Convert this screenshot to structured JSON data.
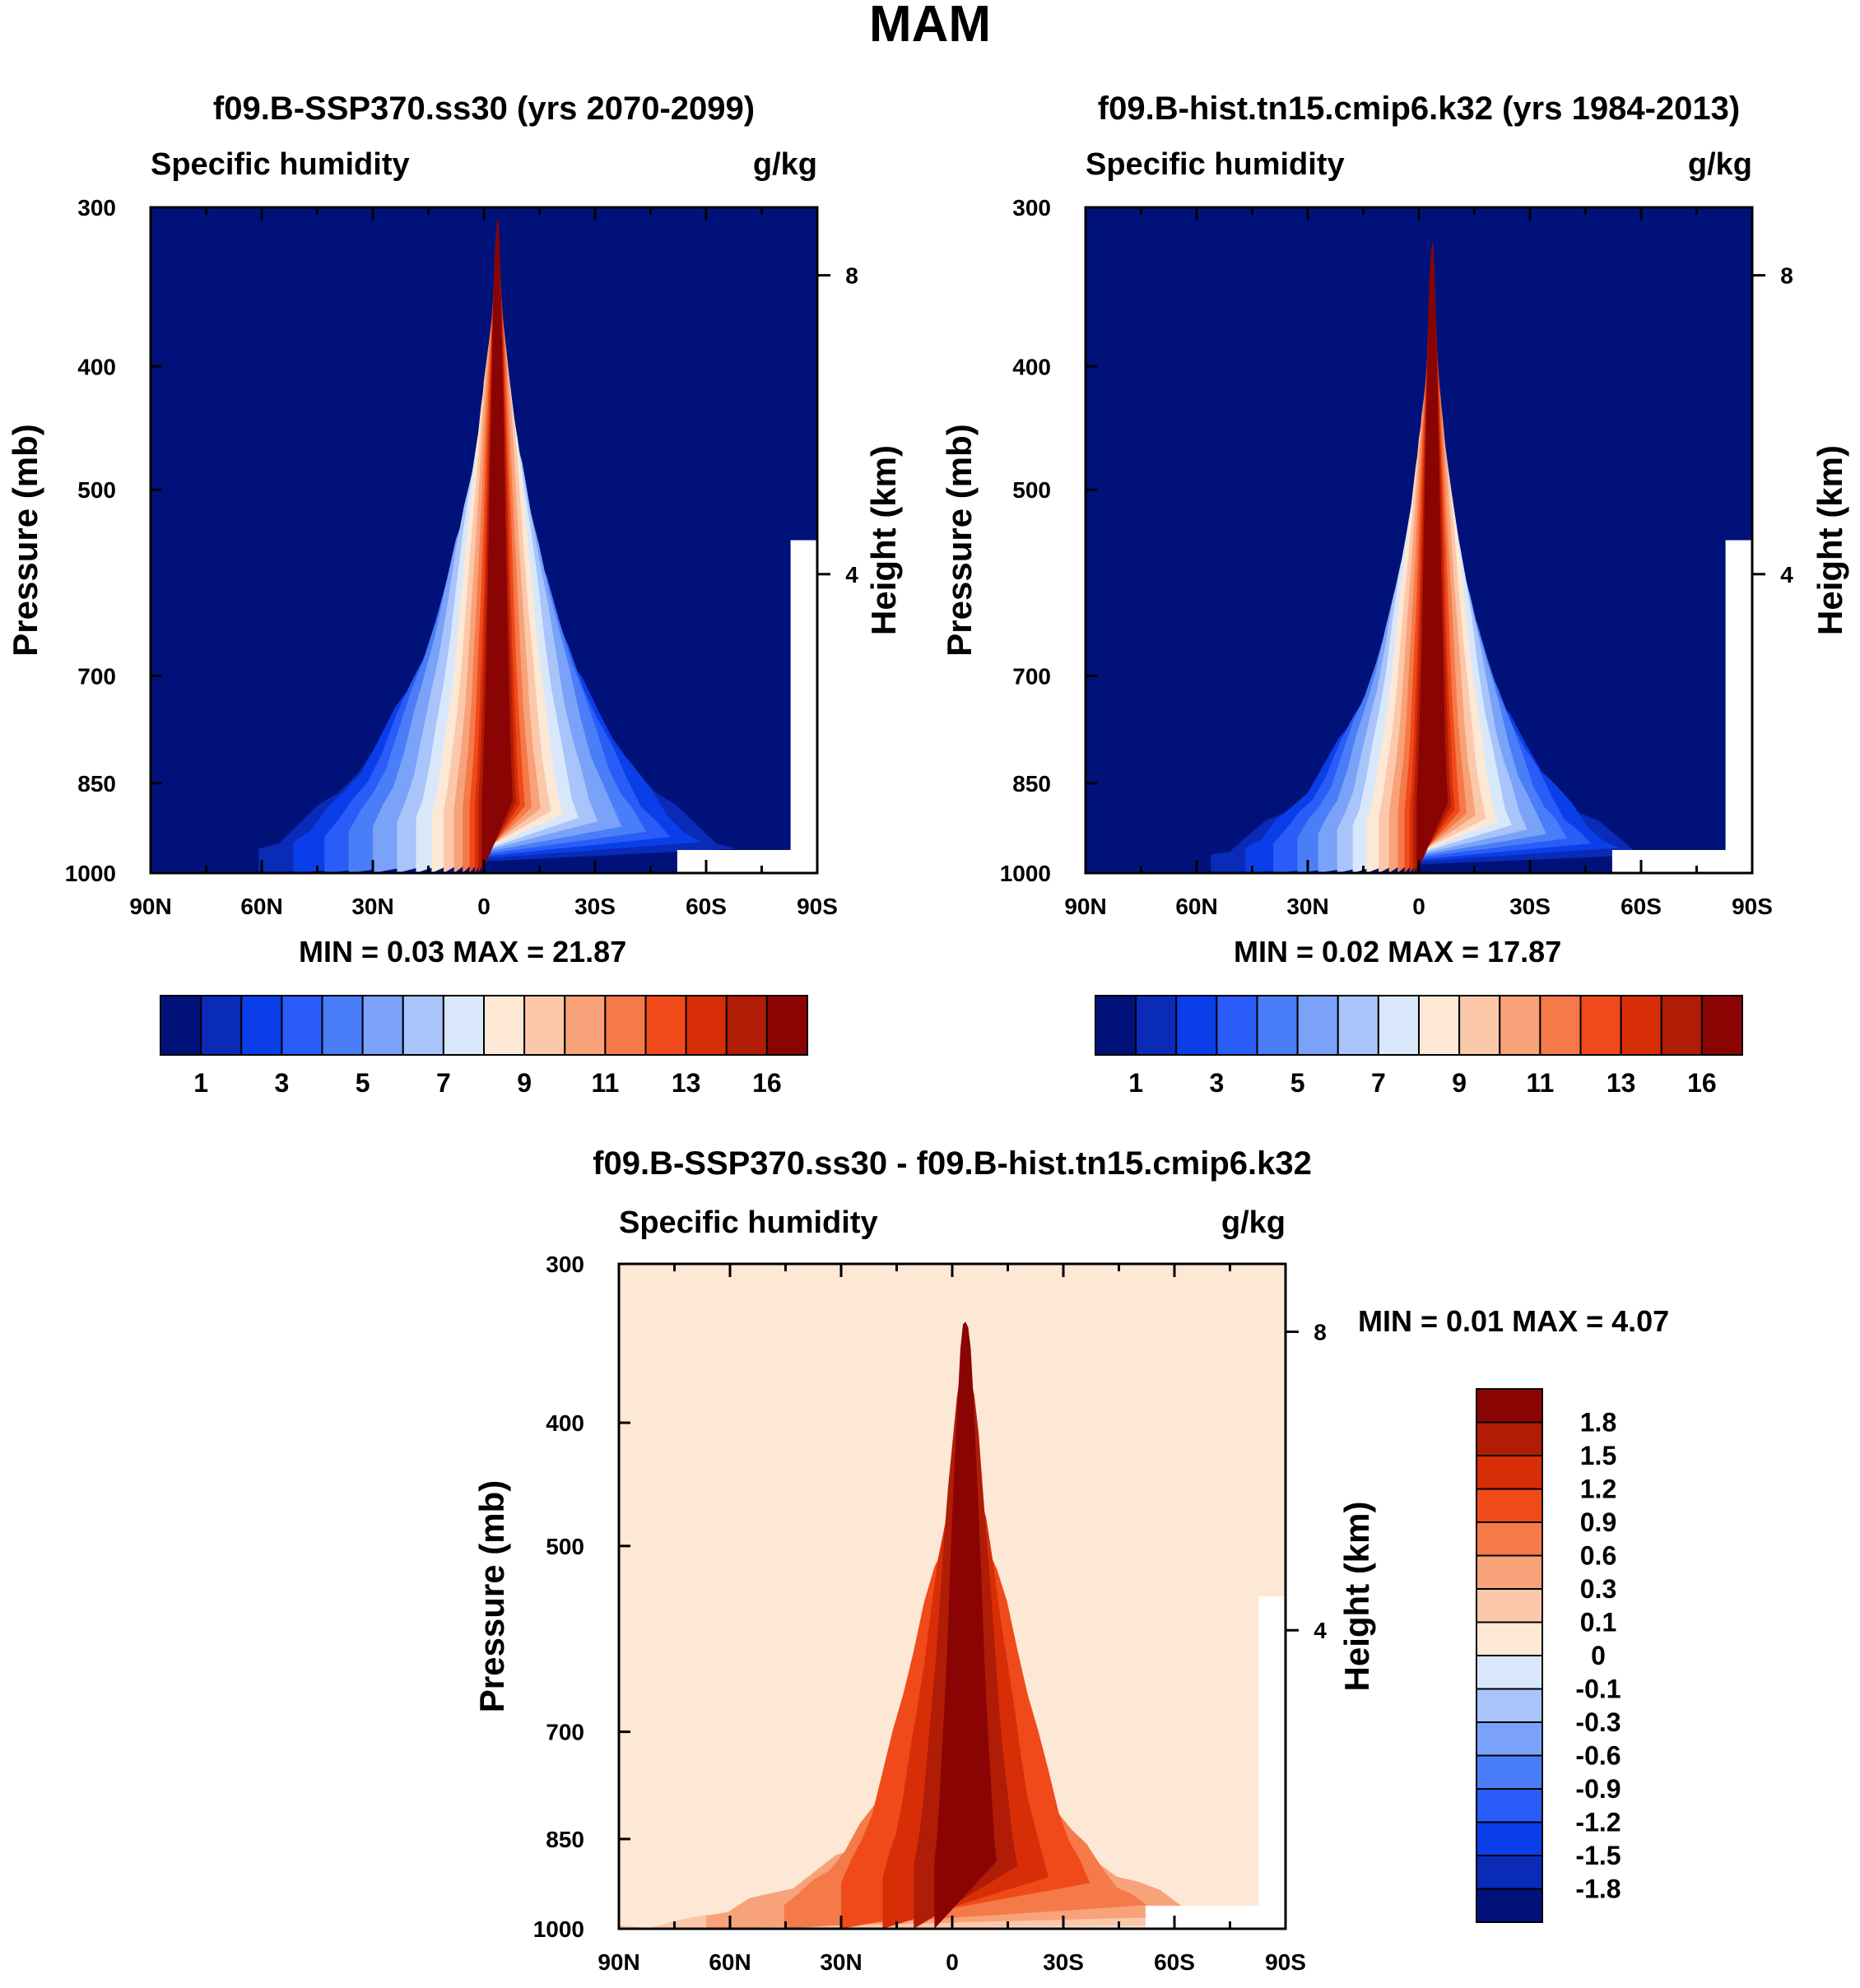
{
  "page_title": "MAM",
  "chart_data": [
    {
      "type": "heatmap",
      "variable": "Specific humidity",
      "title": "f09.B-SSP370.ss30 (yrs 2070-2099)",
      "left_label": "Specific humidity",
      "units": "g/kg",
      "ylabel": "Pressure (mb)",
      "ylabel_right": "Height (km)",
      "x_ticks": [
        "90N",
        "60N",
        "30N",
        "0",
        "30S",
        "60S",
        "90S"
      ],
      "y_ticks": [
        "300",
        "400",
        "500",
        "700",
        "850",
        "1000"
      ],
      "y_ticks_right": [
        "8",
        "4"
      ],
      "pressure_range": [
        1000,
        300
      ],
      "lat_range": [
        90,
        -90
      ],
      "min_label": "MIN =",
      "min_value": "0.03",
      "max_label": "MAX =",
      "max_value": "21.87",
      "colorbar_labels": [
        "1",
        "3",
        "5",
        "7",
        "9",
        "11",
        "13",
        "16"
      ],
      "colors": [
        "#00127a",
        "#0a2ab8",
        "#0a3ee8",
        "#2a5cf8",
        "#4a7ef8",
        "#7aa2f8",
        "#a8c4fa",
        "#d8e8fa",
        "#fde8d6",
        "#fcc8aa",
        "#f8a27a",
        "#f57a4a",
        "#f04a1a",
        "#d82e08",
        "#b01c06",
        "#8a0404"
      ],
      "contour_peaks": [
        0.33,
        0.42,
        0.49,
        0.56,
        0.63,
        0.7,
        0.75,
        0.8,
        0.84,
        0.87,
        0.89,
        0.91,
        0.93,
        0.955,
        0.985
      ],
      "contour_widths": [
        138,
        118,
        100,
        86,
        72,
        58,
        47,
        38,
        31,
        25,
        20,
        16,
        13,
        11,
        9
      ]
    },
    {
      "type": "heatmap",
      "variable": "Specific humidity",
      "title": "f09.B-hist.tn15.cmip6.k32 (yrs 1984-2013)",
      "left_label": "Specific humidity",
      "units": "g/kg",
      "ylabel": "Pressure (mb)",
      "ylabel_right": "Height (km)",
      "x_ticks": [
        "90N",
        "60N",
        "30N",
        "0",
        "30S",
        "60S",
        "90S"
      ],
      "y_ticks": [
        "300",
        "400",
        "500",
        "700",
        "850",
        "1000"
      ],
      "y_ticks_right": [
        "8",
        "4"
      ],
      "pressure_range": [
        1000,
        300
      ],
      "lat_range": [
        90,
        -90
      ],
      "min_label": "MIN =",
      "min_value": "0.02",
      "max_label": "MAX =",
      "max_value": "17.87",
      "colorbar_labels": [
        "1",
        "3",
        "5",
        "7",
        "9",
        "11",
        "13",
        "16"
      ],
      "colors": [
        "#00127a",
        "#0a2ab8",
        "#0a3ee8",
        "#2a5cf8",
        "#4a7ef8",
        "#7aa2f8",
        "#a8c4fa",
        "#d8e8fa",
        "#fde8d6",
        "#fcc8aa",
        "#f8a27a",
        "#f57a4a",
        "#f04a1a",
        "#d82e08",
        "#b01c06",
        "#8a0404"
      ],
      "contour_peaks": [
        0.25,
        0.34,
        0.4,
        0.47,
        0.53,
        0.59,
        0.65,
        0.7,
        0.74,
        0.78,
        0.81,
        0.84,
        0.87,
        0.91,
        0.95
      ],
      "contour_widths": [
        128,
        108,
        92,
        78,
        66,
        55,
        46,
        38,
        31,
        25,
        20,
        16,
        13,
        11,
        9
      ]
    },
    {
      "type": "heatmap",
      "variable": "Specific humidity",
      "title": "f09.B-SSP370.ss30 - f09.B-hist.tn15.cmip6.k32",
      "left_label": "Specific humidity",
      "units": "g/kg",
      "ylabel": "Pressure (mb)",
      "ylabel_right": "Height (km)",
      "x_ticks": [
        "90N",
        "60N",
        "30N",
        "0",
        "30S",
        "60S",
        "90S"
      ],
      "y_ticks": [
        "300",
        "400",
        "500",
        "700",
        "850",
        "1000"
      ],
      "y_ticks_right": [
        "8",
        "4"
      ],
      "pressure_range": [
        1000,
        300
      ],
      "lat_range": [
        90,
        -90
      ],
      "min_label": "MIN =",
      "min_value": "0.01",
      "max_label": "MAX =",
      "max_value": "4.07",
      "colorbar_labels": [
        "1.8",
        "1.5",
        "1.2",
        "0.9",
        "0.6",
        "0.3",
        "0.1",
        "0",
        "-0.1",
        "-0.3",
        "-0.6",
        "-0.9",
        "-1.2",
        "-1.5",
        "-1.8"
      ],
      "colors": [
        "#8a0404",
        "#b01c06",
        "#d82e08",
        "#f04a1a",
        "#f57a4a",
        "#f8a27a",
        "#fcc8aa",
        "#fde8d6",
        "#d8e8fa",
        "#a8c4fa",
        "#7aa2f8",
        "#4a7ef8",
        "#2a5cf8",
        "#0a3ee8",
        "#0a2ab8",
        "#00127a"
      ],
      "contour_peaks": [
        0.05,
        0.18,
        0.32,
        0.62,
        0.7,
        0.85,
        0.92
      ],
      "contour_widths": [
        200,
        150,
        105,
        72,
        48,
        30,
        18
      ]
    }
  ]
}
